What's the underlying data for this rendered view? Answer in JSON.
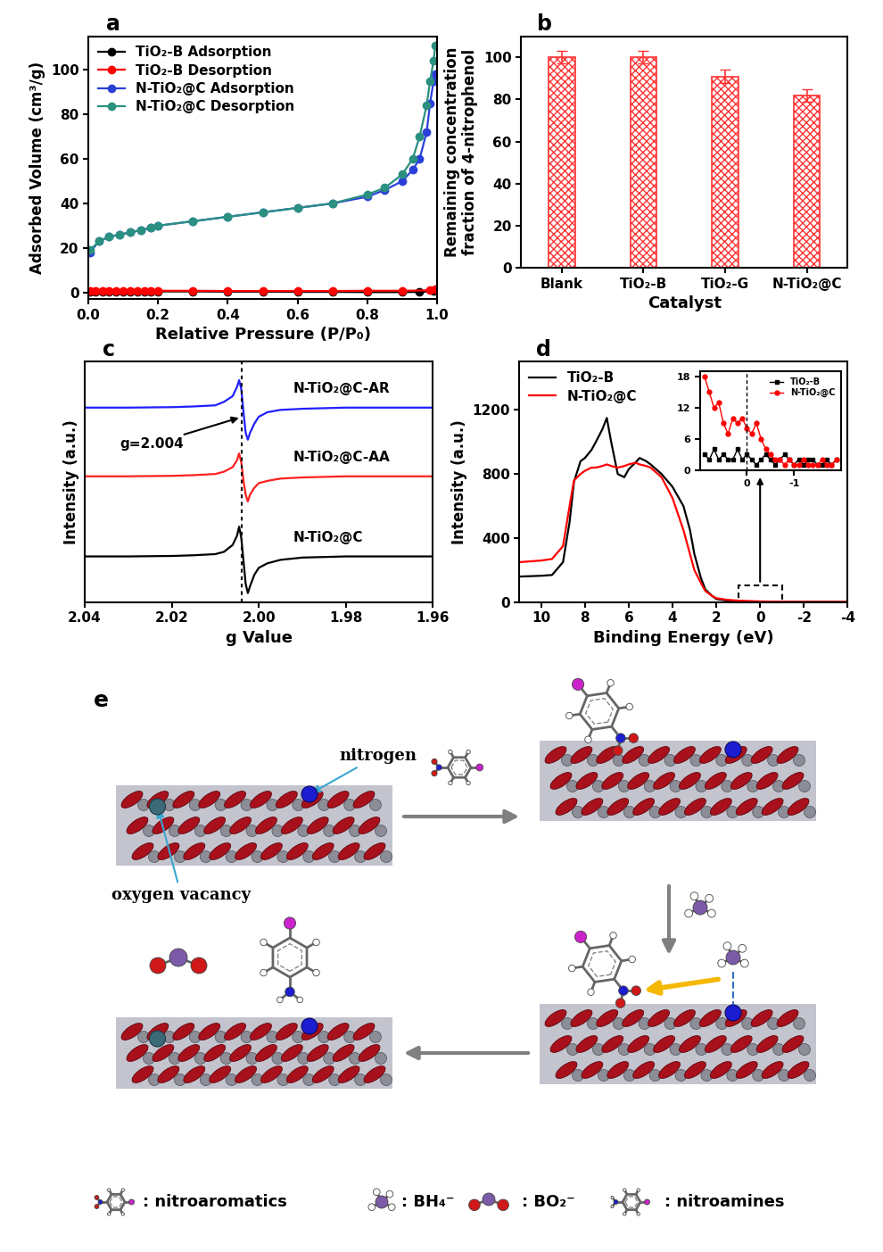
{
  "chart_data": [
    {
      "type": "line",
      "title": "a",
      "xlabel": "Relative Pressure (P/P₀)",
      "ylabel": "Adsorbed Volume (cm³/g)",
      "xlim": [
        0,
        1.0
      ],
      "ylim": [
        -3,
        115
      ],
      "xticks": [
        {
          "value": 0,
          "label": "0.0"
        },
        {
          "value": 0.2,
          "label": "0.2"
        },
        {
          "value": 0.4,
          "label": "0.4"
        },
        {
          "value": 0.6,
          "label": "0.6"
        },
        {
          "value": 0.8,
          "label": "0.8"
        },
        {
          "value": 1.0,
          "label": "1.0"
        }
      ],
      "yticks": [
        0,
        20,
        40,
        60,
        80,
        100
      ],
      "legend": "upper left",
      "series": [
        {
          "name": "TiO₂-B Adsorption",
          "color": "#000000",
          "marker": "circle",
          "x": [
            0.005,
            0.02,
            0.04,
            0.06,
            0.08,
            0.1,
            0.12,
            0.14,
            0.16,
            0.18,
            0.2,
            0.3,
            0.4,
            0.5,
            0.6,
            0.7,
            0.8,
            0.9,
            0.95,
            0.99
          ],
          "values": [
            0.3,
            0.4,
            0.4,
            0.5,
            0.5,
            0.5,
            0.5,
            0.5,
            0.5,
            0.5,
            0.5,
            0.5,
            0.4,
            0.4,
            0.3,
            0.3,
            0.2,
            0.2,
            0.3,
            0.6
          ]
        },
        {
          "name": "TiO₂-B Desorption",
          "color": "#ff0000",
          "marker": "circle",
          "x": [
            0.995,
            0.98,
            0.9,
            0.8,
            0.7,
            0.6,
            0.5,
            0.4,
            0.3,
            0.2,
            0.18,
            0.16,
            0.14,
            0.12,
            0.1,
            0.08,
            0.06,
            0.04,
            0.02,
            0.005
          ],
          "values": [
            1.5,
            1.0,
            0.8,
            0.8,
            0.7,
            0.7,
            0.7,
            0.7,
            0.8,
            0.8,
            0.8,
            0.8,
            0.8,
            0.8,
            0.8,
            0.8,
            0.8,
            0.8,
            0.8,
            0.7
          ]
        },
        {
          "name": "N-TiO₂@C Adsorption",
          "color": "#2a3fd8",
          "marker": "circle",
          "x": [
            0.005,
            0.03,
            0.06,
            0.09,
            0.12,
            0.15,
            0.18,
            0.2,
            0.3,
            0.4,
            0.5,
            0.6,
            0.7,
            0.8,
            0.85,
            0.9,
            0.93,
            0.95,
            0.97,
            0.98,
            0.99,
            0.995
          ],
          "values": [
            18,
            23,
            25,
            26,
            27,
            28,
            29,
            30,
            32,
            34,
            36,
            38,
            40,
            43,
            46,
            50,
            55,
            60,
            72,
            85,
            95,
            98
          ]
        },
        {
          "name": "N-TiO₂@C Desorption",
          "color": "#2a9080",
          "marker": "circle",
          "x": [
            0.995,
            0.99,
            0.98,
            0.97,
            0.95,
            0.93,
            0.9,
            0.85,
            0.8,
            0.7,
            0.6,
            0.5,
            0.4,
            0.3,
            0.2,
            0.18,
            0.15,
            0.12,
            0.09,
            0.06,
            0.03,
            0.005
          ],
          "values": [
            111,
            104,
            95,
            84,
            70,
            60,
            53,
            47,
            44,
            40,
            38,
            36,
            34,
            32,
            30,
            29,
            28,
            27,
            26,
            25,
            23,
            19
          ]
        }
      ]
    },
    {
      "type": "bar",
      "title": "b",
      "xlabel": "Catalyst",
      "ylabel": "Remaining concentration\nfraction of 4-nitrophenol",
      "categories": [
        "Blank",
        "TiO₂-B",
        "TiO₂-G",
        "N-TiO₂@C"
      ],
      "values": [
        100,
        100,
        91,
        82
      ],
      "errors": [
        3,
        3,
        3,
        3
      ],
      "color": "#ff3333",
      "ylim": [
        0,
        110
      ],
      "yticks": [
        0,
        20,
        40,
        60,
        80,
        100
      ]
    },
    {
      "type": "line",
      "title": "c",
      "xlabel": "g Value",
      "ylabel": "Intensity (a.u.)",
      "tick_labels": "x",
      "xlim": [
        2.04,
        1.96
      ],
      "ylim": [
        0,
        10.5
      ],
      "xticks": [
        2.04,
        2.02,
        {
          "value": 2.0,
          "label": "2.00"
        },
        1.98,
        1.96
      ],
      "annotations": [
        {
          "text": "g=2.004",
          "x": 2.004
        }
      ],
      "x": [
        2.04,
        2.03,
        2.02,
        2.015,
        2.01,
        2.008,
        2.006,
        2.005,
        2.0045,
        2.004,
        2.0035,
        2.003,
        2.0025,
        2.002,
        2.001,
        2.0,
        1.998,
        1.995,
        1.99,
        1.98,
        1.97,
        1.96
      ],
      "series": [
        {
          "name": "N-TiO₂@C-AR",
          "color": "#2020ff",
          "values": [
            8.5,
            8.5,
            8.52,
            8.55,
            8.6,
            8.75,
            9.0,
            9.4,
            9.7,
            9.3,
            8.3,
            7.4,
            7.1,
            7.4,
            7.8,
            8.1,
            8.3,
            8.4,
            8.45,
            8.5,
            8.5,
            8.5
          ]
        },
        {
          "name": "N-TiO₂@C-AA",
          "color": "#ff2020",
          "values": [
            5.5,
            5.5,
            5.52,
            5.55,
            5.6,
            5.7,
            5.9,
            6.2,
            6.5,
            6.1,
            5.3,
            4.7,
            4.4,
            4.7,
            5.0,
            5.2,
            5.3,
            5.4,
            5.45,
            5.5,
            5.5,
            5.5
          ]
        },
        {
          "name": "N-TiO₂@C",
          "color": "#000000",
          "values": [
            2.0,
            2.0,
            2.02,
            2.05,
            2.1,
            2.2,
            2.5,
            2.9,
            3.3,
            2.8,
            1.8,
            0.8,
            0.4,
            0.7,
            1.2,
            1.5,
            1.7,
            1.85,
            1.95,
            2.0,
            2.0,
            2.0
          ]
        }
      ]
    },
    {
      "type": "line",
      "title": "d",
      "xlabel": "Binding Energy (eV)",
      "ylabel": "Intensity (a.u.)",
      "xlim": [
        11,
        -4
      ],
      "ylim": [
        0,
        1500
      ],
      "xticks": [
        10,
        8,
        6,
        4,
        2,
        0,
        -2,
        -4
      ],
      "yticks": [
        0,
        400,
        800,
        1200
      ],
      "legend": "upper left",
      "x": [
        11,
        10,
        9.5,
        9,
        8.7,
        8.5,
        8.2,
        8,
        7.7,
        7.5,
        7.2,
        7,
        6.8,
        6.5,
        6.2,
        6,
        5.7,
        5.5,
        5.2,
        5,
        4.5,
        4,
        3.5,
        3.2,
        3,
        2.7,
        2.5,
        2.2,
        2,
        1.5,
        1,
        0,
        -1,
        -2,
        -3,
        -4
      ],
      "series": [
        {
          "name": "TiO₂-B",
          "color": "#000000",
          "values": [
            160,
            165,
            170,
            250,
            500,
            750,
            880,
            900,
            950,
            1000,
            1080,
            1150,
            1000,
            800,
            780,
            830,
            870,
            900,
            880,
            860,
            800,
            720,
            600,
            450,
            300,
            150,
            80,
            40,
            20,
            10,
            5,
            3,
            2,
            2,
            2,
            2
          ]
        },
        {
          "name": "N-TiO₂@C",
          "color": "#ff0000",
          "values": [
            250,
            260,
            270,
            350,
            600,
            760,
            800,
            820,
            840,
            840,
            850,
            860,
            850,
            840,
            850,
            860,
            870,
            860,
            850,
            840,
            780,
            650,
            450,
            300,
            200,
            120,
            70,
            40,
            25,
            15,
            10,
            5,
            3,
            2,
            2,
            2
          ]
        }
      ],
      "inset": {
        "type": "line",
        "xlim": [
          1.0,
          -2.0
        ],
        "ylim": [
          0,
          19
        ],
        "xticks": [
          0,
          -1
        ],
        "yticks": [
          0,
          6,
          12,
          18
        ],
        "legend": "upper right",
        "reference_line": 0,
        "x": [
          0.9,
          0.8,
          0.7,
          0.6,
          0.5,
          0.4,
          0.3,
          0.2,
          0.1,
          0.0,
          -0.1,
          -0.2,
          -0.3,
          -0.4,
          -0.5,
          -0.6,
          -0.7,
          -0.8,
          -0.9,
          -1.0,
          -1.1,
          -1.2,
          -1.3,
          -1.4,
          -1.5,
          -1.6,
          -1.7,
          -1.8,
          -1.9
        ],
        "series": [
          {
            "name": "TiO₂-B",
            "color": "#000000",
            "marker": "square",
            "values": [
              3,
              2,
              4,
              2,
              3,
              2,
              2,
              4,
              2,
              3,
              2,
              1,
              2,
              3,
              2,
              1,
              2,
              3,
              2,
              1,
              2,
              1,
              2,
              2,
              1,
              1,
              2,
              1,
              2
            ]
          },
          {
            "name": "N-TiO₂@C",
            "color": "#ff0000",
            "marker": "circle",
            "values": [
              18,
              15,
              12,
              13,
              9,
              7,
              10,
              9,
              10,
              8,
              7,
              9,
              6,
              4,
              3,
              2,
              2,
              1,
              2,
              1,
              1,
              2,
              1,
              1,
              1,
              2,
              1,
              1,
              2
            ]
          }
        ]
      }
    }
  ],
  "diagram": {
    "title": "e",
    "callouts": [
      "nitrogen",
      "oxygen vacancy"
    ],
    "key_items": [
      ": nitroaromatics",
      ": BH₄⁻",
      ": BO₂⁻",
      ": nitroamines"
    ]
  }
}
